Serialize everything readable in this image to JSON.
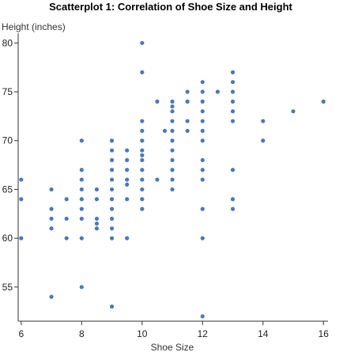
{
  "chart_data": {
    "type": "scatter",
    "title": "Scatterplot 1: Correlation of Shoe Size and Height",
    "xlabel": "Shoe Size",
    "ylabel": "Height (inches)",
    "xlim": [
      5.9,
      16.15
    ],
    "ylim": [
      51.5,
      81.0
    ],
    "xticks": [
      6,
      8,
      10,
      12,
      14,
      16
    ],
    "yticks": [
      55,
      60,
      65,
      70,
      75,
      80
    ],
    "grid": false,
    "point_color": "#4a7ab8",
    "points": [
      {
        "x": 6,
        "y": 66
      },
      {
        "x": 6,
        "y": 64
      },
      {
        "x": 6,
        "y": 60
      },
      {
        "x": 7,
        "y": 65
      },
      {
        "x": 7,
        "y": 63
      },
      {
        "x": 7,
        "y": 62
      },
      {
        "x": 7,
        "y": 61
      },
      {
        "x": 7,
        "y": 54
      },
      {
        "x": 7.5,
        "y": 64
      },
      {
        "x": 7.5,
        "y": 62
      },
      {
        "x": 7.5,
        "y": 60
      },
      {
        "x": 8,
        "y": 70
      },
      {
        "x": 8,
        "y": 67
      },
      {
        "x": 8,
        "y": 66
      },
      {
        "x": 8,
        "y": 65
      },
      {
        "x": 8,
        "y": 64
      },
      {
        "x": 8,
        "y": 63
      },
      {
        "x": 8,
        "y": 62
      },
      {
        "x": 8,
        "y": 60
      },
      {
        "x": 8,
        "y": 55
      },
      {
        "x": 8.5,
        "y": 65
      },
      {
        "x": 8.5,
        "y": 64
      },
      {
        "x": 8.5,
        "y": 62
      },
      {
        "x": 8.5,
        "y": 61.5
      },
      {
        "x": 8.5,
        "y": 61
      },
      {
        "x": 9,
        "y": 70
      },
      {
        "x": 9,
        "y": 69
      },
      {
        "x": 9,
        "y": 68
      },
      {
        "x": 9,
        "y": 67
      },
      {
        "x": 9,
        "y": 66
      },
      {
        "x": 9,
        "y": 65
      },
      {
        "x": 9,
        "y": 64
      },
      {
        "x": 9,
        "y": 63
      },
      {
        "x": 9,
        "y": 62
      },
      {
        "x": 9,
        "y": 61
      },
      {
        "x": 9,
        "y": 60
      },
      {
        "x": 9,
        "y": 53
      },
      {
        "x": 9.5,
        "y": 69
      },
      {
        "x": 9.5,
        "y": 68
      },
      {
        "x": 9.5,
        "y": 67
      },
      {
        "x": 9.5,
        "y": 66
      },
      {
        "x": 9.5,
        "y": 65.5
      },
      {
        "x": 9.5,
        "y": 64
      },
      {
        "x": 9.5,
        "y": 60
      },
      {
        "x": 10,
        "y": 80
      },
      {
        "x": 10,
        "y": 77
      },
      {
        "x": 10,
        "y": 72
      },
      {
        "x": 10,
        "y": 71
      },
      {
        "x": 10,
        "y": 70
      },
      {
        "x": 10,
        "y": 69
      },
      {
        "x": 10,
        "y": 68.5
      },
      {
        "x": 10,
        "y": 68
      },
      {
        "x": 10,
        "y": 67
      },
      {
        "x": 10,
        "y": 66
      },
      {
        "x": 10,
        "y": 65
      },
      {
        "x": 10,
        "y": 64
      },
      {
        "x": 10,
        "y": 63
      },
      {
        "x": 10.5,
        "y": 74
      },
      {
        "x": 10.5,
        "y": 66
      },
      {
        "x": 10.75,
        "y": 71
      },
      {
        "x": 11,
        "y": 74
      },
      {
        "x": 11,
        "y": 73.5
      },
      {
        "x": 11,
        "y": 73
      },
      {
        "x": 11,
        "y": 72
      },
      {
        "x": 11,
        "y": 71
      },
      {
        "x": 11,
        "y": 70
      },
      {
        "x": 11,
        "y": 69
      },
      {
        "x": 11,
        "y": 68
      },
      {
        "x": 11,
        "y": 67
      },
      {
        "x": 11,
        "y": 66
      },
      {
        "x": 11,
        "y": 65
      },
      {
        "x": 11.5,
        "y": 75
      },
      {
        "x": 11.5,
        "y": 74
      },
      {
        "x": 11.5,
        "y": 72
      },
      {
        "x": 11.5,
        "y": 71
      },
      {
        "x": 12,
        "y": 76
      },
      {
        "x": 12,
        "y": 75
      },
      {
        "x": 12,
        "y": 74
      },
      {
        "x": 12,
        "y": 73
      },
      {
        "x": 12,
        "y": 72
      },
      {
        "x": 12,
        "y": 71
      },
      {
        "x": 12,
        "y": 70
      },
      {
        "x": 12,
        "y": 68
      },
      {
        "x": 12,
        "y": 67
      },
      {
        "x": 12,
        "y": 66
      },
      {
        "x": 12,
        "y": 63
      },
      {
        "x": 12,
        "y": 60
      },
      {
        "x": 12,
        "y": 52
      },
      {
        "x": 12.5,
        "y": 75
      },
      {
        "x": 13,
        "y": 77
      },
      {
        "x": 13,
        "y": 76
      },
      {
        "x": 13,
        "y": 75
      },
      {
        "x": 13,
        "y": 74
      },
      {
        "x": 13,
        "y": 73
      },
      {
        "x": 13,
        "y": 72
      },
      {
        "x": 13,
        "y": 67
      },
      {
        "x": 13,
        "y": 64
      },
      {
        "x": 13,
        "y": 63
      },
      {
        "x": 14,
        "y": 72
      },
      {
        "x": 14,
        "y": 70
      },
      {
        "x": 15,
        "y": 73
      },
      {
        "x": 16,
        "y": 74
      }
    ]
  }
}
